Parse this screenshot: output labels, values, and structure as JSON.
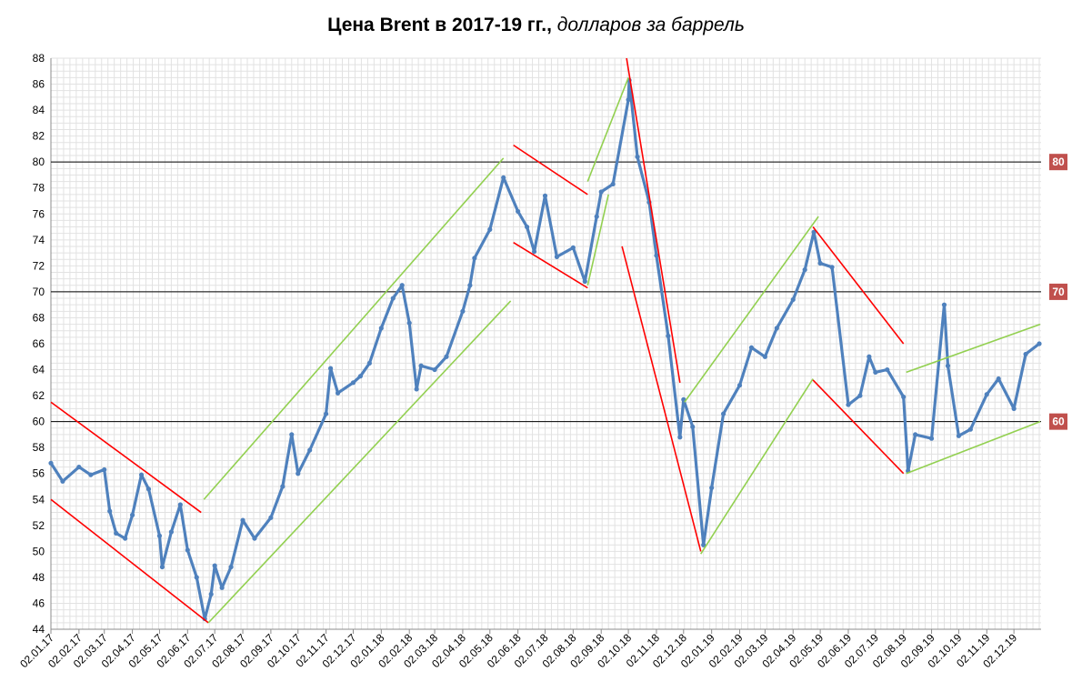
{
  "chart_data": {
    "type": "line",
    "title": "Цена Brent в 2017-19 гг.,",
    "subtitle": "долларов за баррель",
    "ylim": [
      44,
      88
    ],
    "y_ticks": [
      44,
      46,
      48,
      50,
      52,
      54,
      56,
      58,
      60,
      62,
      64,
      66,
      68,
      70,
      72,
      74,
      76,
      78,
      80,
      82,
      84,
      86,
      88
    ],
    "x_ticks": [
      "02.01.17",
      "02.02.17",
      "02.03.17",
      "02.04.17",
      "02.05.17",
      "02.06.17",
      "02.07.17",
      "02.08.17",
      "02.09.17",
      "02.10.17",
      "02.11.17",
      "02.12.17",
      "02.01.18",
      "02.02.18",
      "02.03.18",
      "02.04.18",
      "02.05.18",
      "02.06.18",
      "02.07.18",
      "02.08.18",
      "02.09.18",
      "02.10.18",
      "02.11.18",
      "02.12.18",
      "02.01.19",
      "02.02.19",
      "02.03.19",
      "02.04.19",
      "02.05.19",
      "02.06.19",
      "02.07.19",
      "02.08.19",
      "02.09.19",
      "02.10.19",
      "02.11.19",
      "02.12.19"
    ],
    "grid": true,
    "series": [
      {
        "color": "#4f81bd",
        "points": [
          [
            "02.01.17",
            56.8
          ],
          [
            "15.01.17",
            55.4
          ],
          [
            "02.02.17",
            56.5
          ],
          [
            "15.02.17",
            55.9
          ],
          [
            "02.03.17",
            56.3
          ],
          [
            "08.03.17",
            53.1
          ],
          [
            "15.03.17",
            51.4
          ],
          [
            "25.03.17",
            51.0
          ],
          [
            "02.04.17",
            52.8
          ],
          [
            "12.04.17",
            55.9
          ],
          [
            "20.04.17",
            54.8
          ],
          [
            "02.05.17",
            51.2
          ],
          [
            "05.05.17",
            48.8
          ],
          [
            "15.05.17",
            51.5
          ],
          [
            "25.05.17",
            53.6
          ],
          [
            "02.06.17",
            50.1
          ],
          [
            "12.06.17",
            48.0
          ],
          [
            "21.06.17",
            44.8
          ],
          [
            "28.06.17",
            46.7
          ],
          [
            "02.07.17",
            48.9
          ],
          [
            "10.07.17",
            47.2
          ],
          [
            "20.07.17",
            48.8
          ],
          [
            "02.08.17",
            52.4
          ],
          [
            "15.08.17",
            51.0
          ],
          [
            "02.09.17",
            52.6
          ],
          [
            "15.09.17",
            55.0
          ],
          [
            "25.09.17",
            59.0
          ],
          [
            "02.10.17",
            56.0
          ],
          [
            "15.10.17",
            57.8
          ],
          [
            "02.11.17",
            60.6
          ],
          [
            "07.11.17",
            64.1
          ],
          [
            "15.11.17",
            62.2
          ],
          [
            "02.12.17",
            63.0
          ],
          [
            "10.12.17",
            63.5
          ],
          [
            "20.12.17",
            64.5
          ],
          [
            "02.01.18",
            67.2
          ],
          [
            "15.01.18",
            69.5
          ],
          [
            "25.01.18",
            70.5
          ],
          [
            "02.02.18",
            67.6
          ],
          [
            "10.02.18",
            62.5
          ],
          [
            "15.02.18",
            64.3
          ],
          [
            "02.03.18",
            64.0
          ],
          [
            "15.03.18",
            65.0
          ],
          [
            "02.04.18",
            68.5
          ],
          [
            "10.04.18",
            70.5
          ],
          [
            "15.04.18",
            72.6
          ],
          [
            "02.05.18",
            74.8
          ],
          [
            "17.05.18",
            78.8
          ],
          [
            "02.06.18",
            76.2
          ],
          [
            "12.06.18",
            75.0
          ],
          [
            "20.06.18",
            73.1
          ],
          [
            "02.07.18",
            77.4
          ],
          [
            "15.07.18",
            72.7
          ],
          [
            "02.08.18",
            73.4
          ],
          [
            "15.08.18",
            70.8
          ],
          [
            "28.08.18",
            75.8
          ],
          [
            "02.09.18",
            77.7
          ],
          [
            "15.09.18",
            78.3
          ],
          [
            "02.10.18",
            84.8
          ],
          [
            "03.10.18",
            86.3
          ],
          [
            "12.10.18",
            80.4
          ],
          [
            "25.10.18",
            76.9
          ],
          [
            "02.11.18",
            72.8
          ],
          [
            "15.11.18",
            66.6
          ],
          [
            "28.11.18",
            58.8
          ],
          [
            "02.12.18",
            61.7
          ],
          [
            "12.12.18",
            59.6
          ],
          [
            "24.12.18",
            50.5
          ],
          [
            "02.01.19",
            54.9
          ],
          [
            "15.01.19",
            60.6
          ],
          [
            "02.02.19",
            62.8
          ],
          [
            "15.02.19",
            65.7
          ],
          [
            "02.03.19",
            65.0
          ],
          [
            "15.03.19",
            67.2
          ],
          [
            "02.04.19",
            69.4
          ],
          [
            "15.04.19",
            71.7
          ],
          [
            "25.04.19",
            74.6
          ],
          [
            "02.05.19",
            72.2
          ],
          [
            "15.05.19",
            71.9
          ],
          [
            "02.06.19",
            61.3
          ],
          [
            "15.06.19",
            62.0
          ],
          [
            "25.06.19",
            65.0
          ],
          [
            "02.07.19",
            63.8
          ],
          [
            "15.07.19",
            64.0
          ],
          [
            "02.08.19",
            61.9
          ],
          [
            "07.08.19",
            56.2
          ],
          [
            "15.08.19",
            59.0
          ],
          [
            "02.09.19",
            58.7
          ],
          [
            "16.09.19",
            69.0
          ],
          [
            "20.09.19",
            64.3
          ],
          [
            "02.10.19",
            58.9
          ],
          [
            "15.10.19",
            59.4
          ],
          [
            "02.11.19",
            62.1
          ],
          [
            "15.11.19",
            63.3
          ],
          [
            "02.12.19",
            61.0
          ],
          [
            "15.12.19",
            65.2
          ],
          [
            "30.12.19",
            66.0
          ]
        ]
      }
    ],
    "reference_lines": [
      {
        "value": 60,
        "label": "60"
      },
      {
        "value": 70,
        "label": "70"
      },
      {
        "value": 80,
        "label": "80"
      }
    ],
    "trend_lines": [
      {
        "color": "#ff0000",
        "from": [
          "02.01.17",
          61.5
        ],
        "to": [
          "17.06.17",
          53.0
        ]
      },
      {
        "color": "#ff0000",
        "from": [
          "02.01.17",
          54.0
        ],
        "to": [
          "25.06.17",
          44.5
        ]
      },
      {
        "color": "#92d050",
        "from": [
          "20.06.17",
          54.0
        ],
        "to": [
          "17.05.18",
          80.3
        ]
      },
      {
        "color": "#92d050",
        "from": [
          "25.06.17",
          44.5
        ],
        "to": [
          "25.05.18",
          69.3
        ]
      },
      {
        "color": "#ff0000",
        "from": [
          "28.05.18",
          81.3
        ],
        "to": [
          "18.08.18",
          77.5
        ]
      },
      {
        "color": "#ff0000",
        "from": [
          "28.05.18",
          73.8
        ],
        "to": [
          "18.08.18",
          70.3
        ]
      },
      {
        "color": "#92d050",
        "from": [
          "18.08.18",
          78.5
        ],
        "to": [
          "02.10.18",
          86.5
        ]
      },
      {
        "color": "#92d050",
        "from": [
          "18.08.18",
          70.5
        ],
        "to": [
          "10.09.18",
          77.5
        ]
      },
      {
        "color": "#ff0000",
        "from": [
          "30.09.18",
          88.0
        ],
        "to": [
          "28.11.18",
          63.0
        ]
      },
      {
        "color": "#ff0000",
        "from": [
          "25.09.18",
          73.5
        ],
        "to": [
          "21.12.18",
          50.0
        ]
      },
      {
        "color": "#92d050",
        "from": [
          "03.12.18",
          61.5
        ],
        "to": [
          "30.04.19",
          75.8
        ]
      },
      {
        "color": "#92d050",
        "from": [
          "21.12.18",
          49.8
        ],
        "to": [
          "24.04.19",
          63.3
        ]
      },
      {
        "color": "#ff0000",
        "from": [
          "24.04.19",
          75.0
        ],
        "to": [
          "02.08.19",
          66.0
        ]
      },
      {
        "color": "#ff0000",
        "from": [
          "24.04.19",
          63.2
        ],
        "to": [
          "02.08.19",
          56.0
        ]
      },
      {
        "color": "#92d050",
        "from": [
          "05.08.19",
          63.8
        ],
        "to": [
          "31.12.19",
          67.5
        ]
      },
      {
        "color": "#92d050",
        "from": [
          "05.08.19",
          56.0
        ],
        "to": [
          "31.12.19",
          60.0
        ]
      }
    ]
  }
}
